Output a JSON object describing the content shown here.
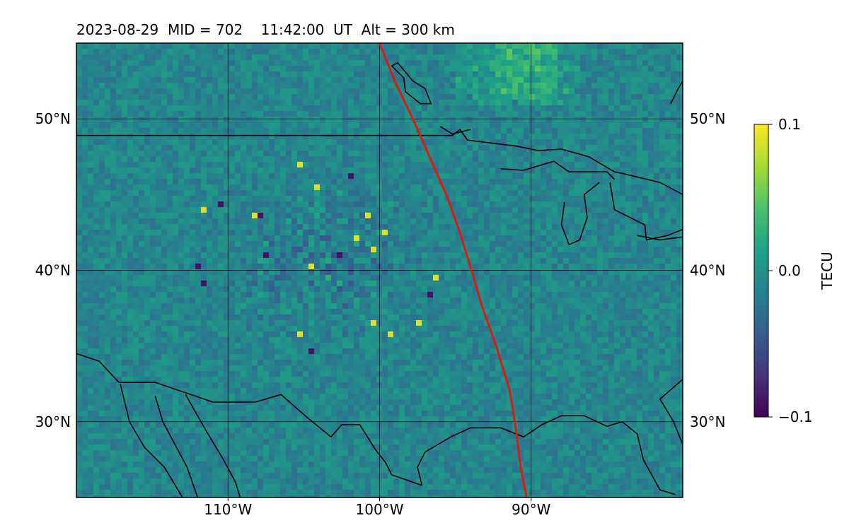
{
  "title": "2023-08-29  MID = 702    11:42:00  UT  Alt = 300 km",
  "map": {
    "lon_range": [
      -120,
      -80
    ],
    "lat_range": [
      25,
      55
    ],
    "lon_ticks": [
      {
        "lon": -110,
        "label": "110°W"
      },
      {
        "lon": -100,
        "label": "100°W"
      },
      {
        "lon": -90,
        "label": "90°W"
      }
    ],
    "lat_ticks": [
      {
        "lat": 30,
        "label": "30°N"
      },
      {
        "lat": 40,
        "label": "40°N"
      },
      {
        "lat": 50,
        "label": "50°N"
      }
    ],
    "grid": true,
    "eclipse_path_color": "#e0190e",
    "eclipse_path": [
      [
        -100.0,
        55.0
      ],
      [
        -99.0,
        52.5
      ],
      [
        -97.8,
        50.0
      ],
      [
        -96.7,
        47.5
      ],
      [
        -95.6,
        45.0
      ],
      [
        -94.7,
        42.5
      ],
      [
        -94.0,
        40.2
      ],
      [
        -93.2,
        37.5
      ],
      [
        -92.3,
        35.0
      ],
      [
        -91.4,
        32.0
      ],
      [
        -91.0,
        29.5
      ],
      [
        -90.7,
        27.0
      ],
      [
        -90.3,
        25.0
      ]
    ],
    "coastlines": [
      [
        [
          -120,
          48.9
        ],
        [
          -95.2,
          48.9
        ],
        [
          -94.7,
          49.3
        ],
        [
          -94.2,
          48.6
        ],
        [
          -91.0,
          48.2
        ],
        [
          -89.5,
          47.9
        ],
        [
          -88.0,
          48.0
        ],
        [
          -86.2,
          47.5
        ],
        [
          -84.5,
          46.5
        ],
        [
          -84.0,
          46.4
        ],
        [
          -81.5,
          45.8
        ],
        [
          -80.0,
          45.0
        ]
      ],
      [
        [
          -120,
          34.5
        ],
        [
          -118.5,
          34.0
        ],
        [
          -117.2,
          32.6
        ],
        [
          -114.8,
          32.6
        ],
        [
          -111.0,
          31.3
        ],
        [
          -108.2,
          31.3
        ],
        [
          -106.5,
          31.8
        ],
        [
          -104.8,
          30.3
        ],
        [
          -103.2,
          29.0
        ],
        [
          -102.5,
          29.8
        ],
        [
          -101.3,
          29.8
        ],
        [
          -100.3,
          28.2
        ],
        [
          -99.6,
          27.3
        ],
        [
          -99.2,
          26.5
        ],
        [
          -97.2,
          25.8
        ]
      ],
      [
        [
          -97.2,
          25.8
        ],
        [
          -97.5,
          27.0
        ],
        [
          -97.0,
          28.0
        ],
        [
          -95.3,
          29.0
        ],
        [
          -94.0,
          29.6
        ],
        [
          -92.0,
          29.6
        ],
        [
          -90.5,
          29.0
        ],
        [
          -89.3,
          29.8
        ],
        [
          -88.0,
          30.4
        ],
        [
          -86.5,
          30.4
        ],
        [
          -85.0,
          29.7
        ],
        [
          -84.0,
          30.0
        ],
        [
          -83.0,
          29.2
        ],
        [
          -82.6,
          27.5
        ],
        [
          -81.5,
          25.5
        ],
        [
          -80.5,
          25.2
        ]
      ],
      [
        [
          -80.0,
          28.5
        ],
        [
          -80.6,
          30.0
        ],
        [
          -81.5,
          31.5
        ],
        [
          -80.0,
          32.8
        ]
      ],
      [
        [
          -112.8,
          31.8
        ],
        [
          -111.5,
          29.5
        ],
        [
          -110.3,
          27.5
        ],
        [
          -109.5,
          26.0
        ],
        [
          -109.2,
          25.0
        ]
      ],
      [
        [
          -114.8,
          31.7
        ],
        [
          -114.3,
          30.0
        ],
        [
          -113.5,
          28.5
        ],
        [
          -112.7,
          27.0
        ],
        [
          -112.0,
          25.0
        ]
      ],
      [
        [
          -117.1,
          32.5
        ],
        [
          -116.5,
          30.0
        ],
        [
          -115.5,
          28.3
        ],
        [
          -114.2,
          27.0
        ],
        [
          -113.0,
          25.0
        ]
      ],
      [
        [
          -92.0,
          46.7
        ],
        [
          -90.5,
          46.6
        ],
        [
          -88.5,
          47.2
        ],
        [
          -87.5,
          46.5
        ],
        [
          -85.0,
          46.5
        ],
        [
          -84.5,
          46.0
        ]
      ],
      [
        [
          -87.8,
          44.5
        ],
        [
          -88.0,
          43.0
        ],
        [
          -87.5,
          41.7
        ],
        [
          -86.8,
          42.0
        ],
        [
          -86.3,
          43.5
        ],
        [
          -86.5,
          45.0
        ],
        [
          -85.5,
          45.8
        ]
      ],
      [
        [
          -84.8,
          45.8
        ],
        [
          -84.5,
          44.0
        ],
        [
          -83.5,
          43.5
        ],
        [
          -82.5,
          43.0
        ],
        [
          -82.4,
          42.0
        ],
        [
          -81.0,
          42.3
        ],
        [
          -80.0,
          42.7
        ]
      ],
      [
        [
          -83.0,
          42.3
        ],
        [
          -81.5,
          42.0
        ],
        [
          -80.0,
          42.2
        ]
      ],
      [
        [
          -94.0,
          49.3
        ],
        [
          -95.2,
          49.0
        ],
        [
          -96.0,
          49.5
        ]
      ],
      [
        [
          -80.8,
          51.0
        ],
        [
          -80.3,
          52.0
        ],
        [
          -80.0,
          52.5
        ]
      ],
      [
        [
          -100.0,
          55.0
        ]
      ]
    ],
    "lakes": [
      [
        [
          -99.2,
          53.5
        ],
        [
          -98.4,
          52.7
        ],
        [
          -98.3,
          51.8
        ],
        [
          -97.3,
          51.0
        ],
        [
          -96.6,
          51.0
        ],
        [
          -97.0,
          52.0
        ],
        [
          -97.8,
          52.5
        ],
        [
          -98.8,
          53.7
        ],
        [
          -99.2,
          53.5
        ]
      ]
    ]
  },
  "colorbar": {
    "label": "TECU",
    "ticks": [
      {
        "value": 0.1,
        "label": "0.1"
      },
      {
        "value": 0.0,
        "label": "0.0"
      },
      {
        "value": -0.1,
        "label": "−0.1"
      }
    ],
    "range": [
      -0.1,
      0.1
    ],
    "colormap": "viridis"
  }
}
